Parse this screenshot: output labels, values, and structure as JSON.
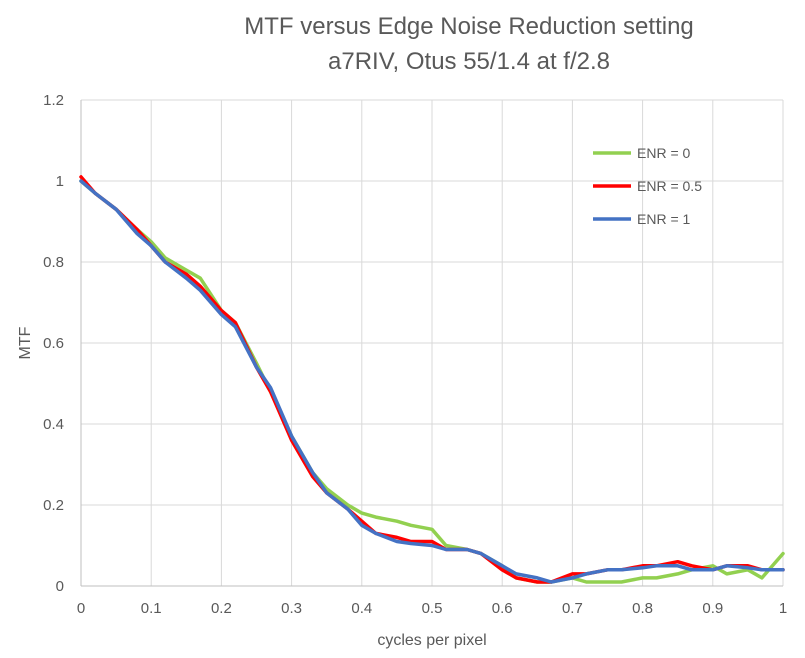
{
  "chart_data": {
    "type": "line",
    "title": "MTF versus Edge Noise Reduction setting",
    "subtitle": "a7RIV, Otus 55/1.4 at f/2.8",
    "xlabel": "cycles per pixel",
    "ylabel": "MTF",
    "xlim": [
      0,
      1
    ],
    "ylim": [
      0,
      1.2
    ],
    "x_ticks": [
      "0",
      "0.1",
      "0.2",
      "0.3",
      "0.4",
      "0.5",
      "0.6",
      "0.7",
      "0.8",
      "0.9",
      "1"
    ],
    "y_ticks": [
      "0",
      "0.2",
      "0.4",
      "0.6",
      "0.8",
      "1",
      "1.2"
    ],
    "grid": "vertical and horizontal",
    "legend_position": "top-right",
    "x": [
      0,
      0.02,
      0.05,
      0.08,
      0.1,
      0.12,
      0.15,
      0.17,
      0.2,
      0.22,
      0.25,
      0.27,
      0.3,
      0.33,
      0.35,
      0.38,
      0.4,
      0.42,
      0.45,
      0.47,
      0.5,
      0.52,
      0.55,
      0.57,
      0.6,
      0.62,
      0.65,
      0.67,
      0.7,
      0.72,
      0.75,
      0.77,
      0.8,
      0.82,
      0.85,
      0.87,
      0.9,
      0.92,
      0.95,
      0.97,
      1.0
    ],
    "series": [
      {
        "name": "ENR = 0",
        "color": "#92d050",
        "values": [
          1.0,
          0.97,
          0.93,
          0.88,
          0.85,
          0.81,
          0.78,
          0.76,
          0.68,
          0.65,
          0.55,
          0.48,
          0.37,
          0.28,
          0.24,
          0.2,
          0.18,
          0.17,
          0.16,
          0.15,
          0.14,
          0.1,
          0.09,
          0.08,
          0.05,
          0.02,
          0.01,
          0.01,
          0.02,
          0.01,
          0.01,
          0.01,
          0.02,
          0.02,
          0.03,
          0.04,
          0.05,
          0.03,
          0.04,
          0.02,
          0.08
        ]
      },
      {
        "name": "ENR = 0.5",
        "color": "#ff0000",
        "values": [
          1.01,
          0.97,
          0.93,
          0.88,
          0.84,
          0.8,
          0.77,
          0.74,
          0.68,
          0.65,
          0.54,
          0.48,
          0.36,
          0.27,
          0.23,
          0.19,
          0.16,
          0.13,
          0.12,
          0.11,
          0.11,
          0.09,
          0.09,
          0.08,
          0.04,
          0.02,
          0.01,
          0.01,
          0.03,
          0.03,
          0.04,
          0.04,
          0.05,
          0.05,
          0.06,
          0.05,
          0.04,
          0.05,
          0.05,
          0.04,
          0.04
        ]
      },
      {
        "name": "ENR = 1",
        "color": "#4472c4",
        "values": [
          1.0,
          0.97,
          0.93,
          0.87,
          0.84,
          0.8,
          0.76,
          0.73,
          0.67,
          0.64,
          0.54,
          0.49,
          0.37,
          0.28,
          0.23,
          0.19,
          0.15,
          0.13,
          0.11,
          0.105,
          0.1,
          0.09,
          0.09,
          0.08,
          0.05,
          0.03,
          0.02,
          0.01,
          0.02,
          0.03,
          0.04,
          0.04,
          0.045,
          0.05,
          0.05,
          0.04,
          0.04,
          0.05,
          0.045,
          0.04,
          0.04
        ]
      }
    ]
  }
}
